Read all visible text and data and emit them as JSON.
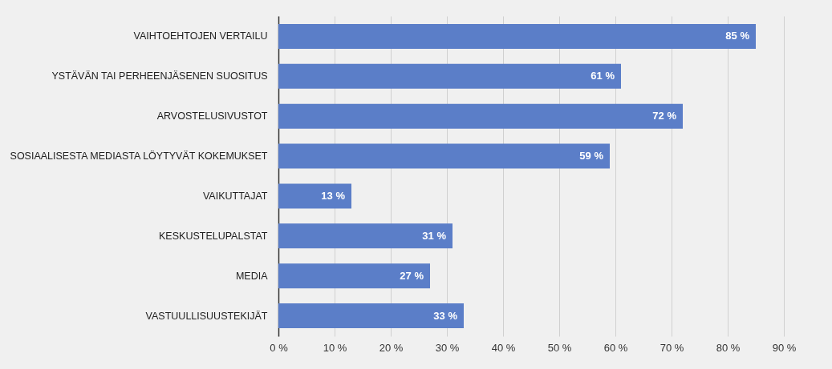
{
  "chart_data": {
    "type": "bar",
    "orientation": "horizontal",
    "categories": [
      "VAIHTOEHTOJEN VERTAILU",
      "YSTÄVÄN TAI PERHEENJÄSENEN SUOSITUS",
      "ARVOSTELUSIVUSTOT",
      "SOSIAALISESTA MEDIASTA LÖYTYVÄT KOKEMUKSET",
      "VAIKUTTAJAT",
      "KESKUSTELUPALSTAT",
      "MEDIA",
      "VASTUULLISUUSTEKIJÄT"
    ],
    "values": [
      85,
      61,
      72,
      59,
      13,
      31,
      27,
      33
    ],
    "value_labels": [
      "85 %",
      "61 %",
      "72 %",
      "59 %",
      "13 %",
      "31 %",
      "27 %",
      "33 %"
    ],
    "color": "#5b7ec8",
    "xlim": [
      0,
      90
    ],
    "xticks": [
      {
        "value": 0,
        "label": "0 %"
      },
      {
        "value": 10,
        "label": "10 %"
      },
      {
        "value": 20,
        "label": "20 %"
      },
      {
        "value": 30,
        "label": "30 %"
      },
      {
        "value": 40,
        "label": "40 %"
      },
      {
        "value": 50,
        "label": "50 %"
      },
      {
        "value": 60,
        "label": "60 %"
      },
      {
        "value": 70,
        "label": "70 %"
      },
      {
        "value": 80,
        "label": "80 %"
      },
      {
        "value": 90,
        "label": "90 %"
      }
    ],
    "grid": "x"
  }
}
